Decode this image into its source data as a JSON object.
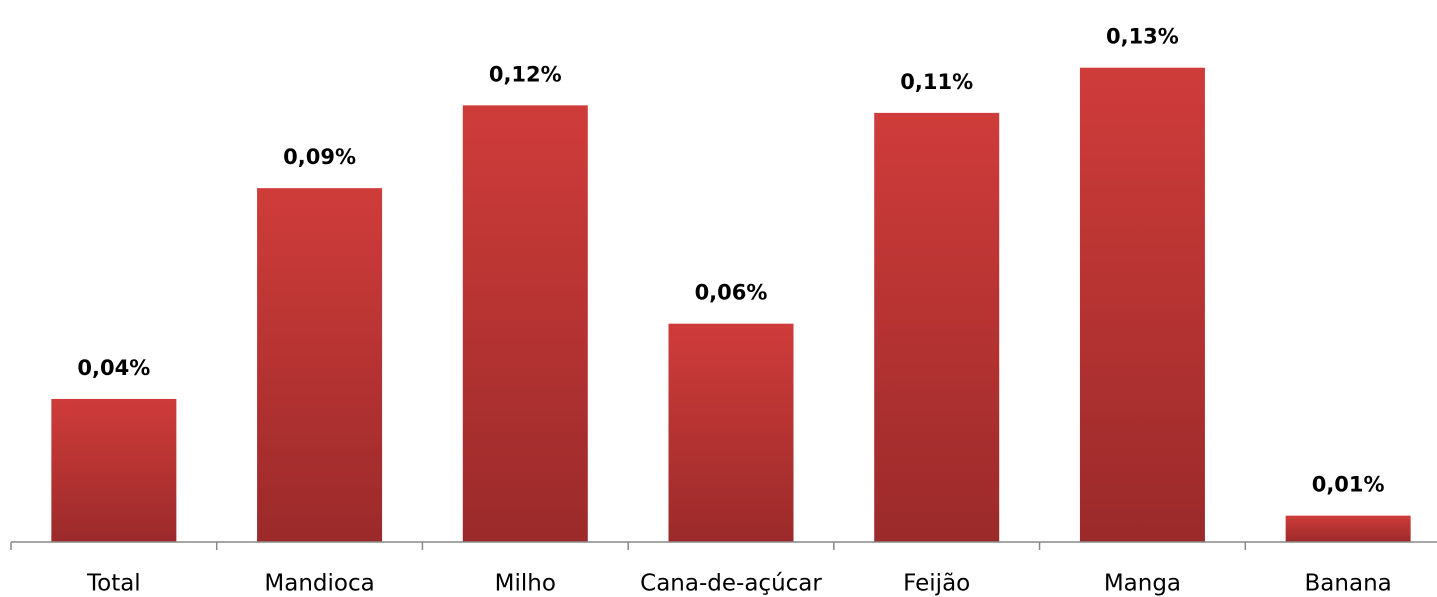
{
  "chart_data": {
    "type": "bar",
    "categories": [
      "Total",
      "Mandioca",
      "Milho",
      "Cana-de-açúcar",
      "Feijão",
      "Manga",
      "Banana"
    ],
    "values": [
      0.038,
      0.094,
      0.116,
      0.058,
      0.114,
      0.126,
      0.007
    ],
    "value_labels": [
      "0,04%",
      "0,09%",
      "0,12%",
      "0,06%",
      "0,11%",
      "0,13%",
      "0,01%"
    ],
    "color": "#cf3c3a",
    "ylim": [
      0,
      0.14
    ]
  }
}
